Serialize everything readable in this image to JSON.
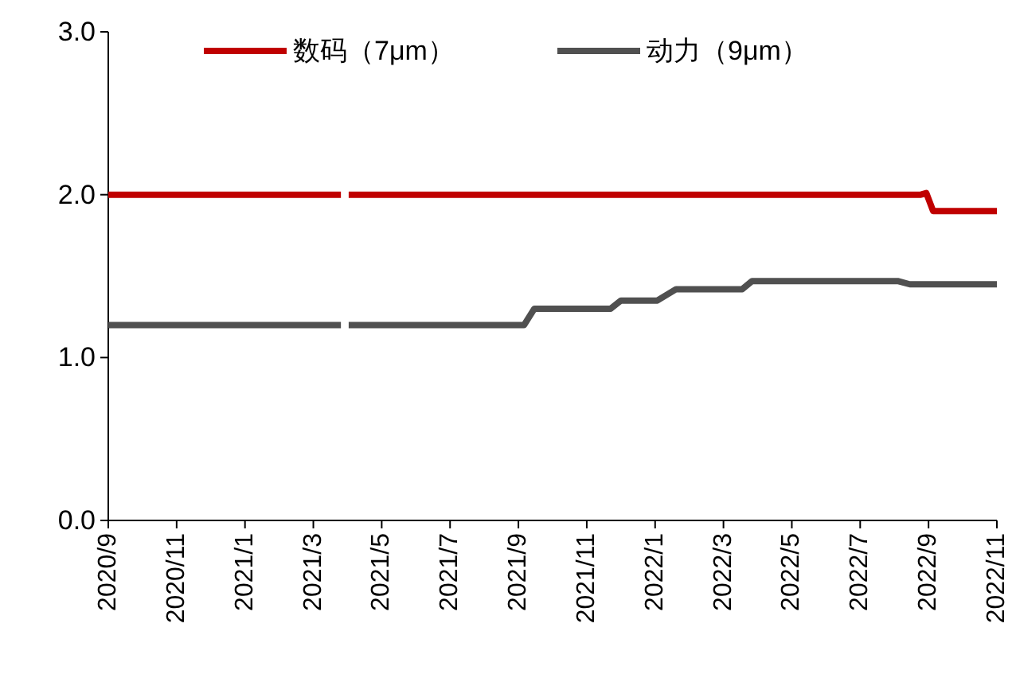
{
  "chart_data": {
    "type": "line",
    "legend": "top",
    "grid": false,
    "line_style": "solid",
    "xlim": [
      "2020-09",
      "2022-11"
    ],
    "xticks": [
      {
        "value": "2020-09",
        "label": "2020/9"
      },
      {
        "value": "2020-11",
        "label": "2020/11"
      },
      {
        "value": "2021-01",
        "label": "2021/1"
      },
      {
        "value": "2021-03",
        "label": "2021/3"
      },
      {
        "value": "2021-05",
        "label": "2021/5"
      },
      {
        "value": "2021-07",
        "label": "2021/7"
      },
      {
        "value": "2021-09",
        "label": "2021/9"
      },
      {
        "value": "2021-11",
        "label": "2021/11"
      },
      {
        "value": "2022-01",
        "label": "2022/1"
      },
      {
        "value": "2022-03",
        "label": "2022/3"
      },
      {
        "value": "2022-05",
        "label": "2022/5"
      },
      {
        "value": "2022-07",
        "label": "2022/7"
      },
      {
        "value": "2022-09",
        "label": "2022/9"
      },
      {
        "value": "2022-11",
        "label": "2022/11"
      }
    ],
    "ylim": [
      0,
      3
    ],
    "yticks": [
      {
        "value": 0,
        "label": "0.0"
      },
      {
        "value": 1,
        "label": "1.0"
      },
      {
        "value": 2,
        "label": "2.0"
      },
      {
        "value": 3,
        "label": "3.0"
      }
    ],
    "series": [
      {
        "name": "数码（7μm）",
        "color": "#c00000",
        "x": [
          "2020-09-01",
          "2021-03-26",
          "2021-03-29",
          "2021-04-02",
          "2022-08-25",
          "2022-08-30",
          "2022-09-05",
          "2022-11-01"
        ],
        "values": [
          2.0,
          2.0,
          null,
          2.0,
          2.0,
          2.01,
          1.9,
          1.9
        ]
      },
      {
        "name": "动力（9μm）",
        "color": "#505050",
        "x": [
          "2020-09-01",
          "2021-03-26",
          "2021-03-29",
          "2021-04-02",
          "2021-09-06",
          "2021-09-15",
          "2021-11-22",
          "2021-12-01",
          "2022-01-03",
          "2022-01-20",
          "2022-03-18",
          "2022-03-27",
          "2022-08-04",
          "2022-08-15",
          "2022-11-01"
        ],
        "values": [
          1.2,
          1.2,
          null,
          1.2,
          1.2,
          1.3,
          1.3,
          1.35,
          1.35,
          1.42,
          1.42,
          1.47,
          1.47,
          1.45,
          1.45
        ]
      }
    ]
  }
}
